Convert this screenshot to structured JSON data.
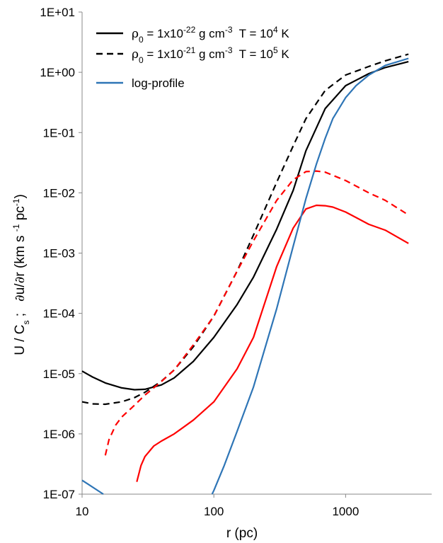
{
  "chart_data": {
    "type": "line",
    "xscale": "log",
    "yscale": "log",
    "xlim": [
      10,
      4500
    ],
    "ylim": [
      1e-07,
      10
    ],
    "xlabel": "r (pc)",
    "ylabel": {
      "p1": "U / C",
      "p1_sub": "s",
      "p2": " ;   ",
      "p3": "∂",
      "p4": "u/",
      "p5": "∂",
      "p6": "r (km s ",
      "p6_sup": "-1",
      "p7": " pc",
      "p7_sup": "-1",
      "p8": ")"
    },
    "x_ticks": [
      {
        "value": 10,
        "label": "10"
      },
      {
        "value": 100,
        "label": "100"
      },
      {
        "value": 1000,
        "label": "1000"
      }
    ],
    "y_ticks": [
      {
        "value": 10.0,
        "label": "1E+01"
      },
      {
        "value": 1.0,
        "label": "1E+00"
      },
      {
        "value": 0.1,
        "label": "1E-01"
      },
      {
        "value": 0.01,
        "label": "1E-02"
      },
      {
        "value": 0.001,
        "label": "1E-03"
      },
      {
        "value": 0.0001,
        "label": "1E-04"
      },
      {
        "value": 1e-05,
        "label": "1E-05"
      },
      {
        "value": 1e-06,
        "label": "1E-06"
      },
      {
        "value": 1e-07,
        "label": "1E-07"
      }
    ],
    "grid": false,
    "legend": {
      "placement": "top-left",
      "entries": [
        {
          "style": "solid",
          "color": "#000000",
          "rho": "ρ",
          "rho_sub": "0",
          "eq": " = 1x10",
          "exp": "-22",
          "unit": " g cm",
          "unit_exp": "-3",
          "temp": "  T = 10",
          "temp_exp": "4",
          "temp_unit": " K"
        },
        {
          "style": "dashed",
          "color": "#000000",
          "rho": "ρ",
          "rho_sub": "0",
          "eq": " = 1x10",
          "exp": "-21",
          "unit": " g cm",
          "unit_exp": "-3",
          "temp": "  T = 10",
          "temp_exp": "5",
          "temp_unit": " K"
        },
        {
          "style": "solid",
          "color": "#2e75b6",
          "label": "log-profile"
        }
      ]
    },
    "series": [
      {
        "key": "ucs_rho22",
        "color": "#000000",
        "dash": false,
        "x": [
          10,
          12,
          15,
          20,
          25,
          30,
          40,
          50,
          70,
          100,
          150,
          200,
          300,
          400,
          500,
          700,
          1000,
          1500,
          2000,
          3000
        ],
        "y": [
          1.1e-05,
          8.8e-06,
          7e-06,
          5.8e-06,
          5.4e-06,
          5.5e-06,
          6.5e-06,
          8.5e-06,
          1.6e-05,
          4e-05,
          0.00014,
          0.0004,
          0.0025,
          0.011,
          0.05,
          0.25,
          0.6,
          0.95,
          1.2,
          1.5
        ]
      },
      {
        "key": "ucs_rho21",
        "color": "#000000",
        "dash": true,
        "x": [
          10,
          12,
          15,
          20,
          25,
          30,
          40,
          50,
          70,
          100,
          150,
          200,
          300,
          400,
          500,
          700,
          1000,
          1500,
          2000,
          3000
        ],
        "y": [
          3.4e-06,
          3.15e-06,
          3.1e-06,
          3.4e-06,
          4e-06,
          4.9e-06,
          7.5e-06,
          1.15e-05,
          2.8e-05,
          9e-05,
          0.0005,
          0.002,
          0.015,
          0.06,
          0.17,
          0.5,
          0.9,
          1.25,
          1.55,
          2.0
        ]
      },
      {
        "key": "dudr_rho22",
        "color": "#ff0000",
        "dash": false,
        "x": [
          26,
          28,
          30,
          35,
          40,
          50,
          70,
          100,
          150,
          200,
          300,
          400,
          500,
          600,
          700,
          800,
          1000,
          1500,
          2000,
          3000
        ],
        "y": [
          1.6e-07,
          3e-07,
          4.2e-07,
          6.3e-07,
          7.6e-07,
          1e-06,
          1.7e-06,
          3.4e-06,
          1.2e-05,
          4e-05,
          0.0006,
          0.0026,
          0.0054,
          0.0062,
          0.0061,
          0.0058,
          0.0048,
          0.003,
          0.0024,
          0.00145
        ]
      },
      {
        "key": "dudr_rho21",
        "color": "#ff0000",
        "dash": true,
        "x": [
          15,
          16,
          18,
          20,
          25,
          30,
          40,
          50,
          70,
          100,
          150,
          200,
          300,
          400,
          500,
          600,
          700,
          1000,
          1500,
          2000,
          3000
        ],
        "y": [
          4.4e-07,
          8e-07,
          1.4e-06,
          1.9e-06,
          3e-06,
          4.4e-06,
          7.4e-06,
          1.15e-05,
          3e-05,
          9e-05,
          0.0005,
          0.0016,
          0.0075,
          0.0165,
          0.0225,
          0.023,
          0.022,
          0.016,
          0.01,
          0.0075,
          0.0043
        ]
      },
      {
        "key": "log_profile",
        "color": "#2e75b6",
        "dash": false,
        "x": [
          10,
          14.5
        ],
        "y": [
          1.7e-07,
          1e-07
        ],
        "x2": [
          97,
          100,
          120,
          150,
          200,
          300,
          400,
          500,
          600,
          700,
          800,
          1000,
          1200,
          1500,
          2000,
          3000
        ],
        "y2": [
          1e-07,
          1.15e-07,
          3e-07,
          1.1e-06,
          6e-06,
          0.00012,
          0.0013,
          0.008,
          0.03,
          0.08,
          0.17,
          0.38,
          0.6,
          0.9,
          1.3,
          1.7
        ]
      }
    ]
  }
}
